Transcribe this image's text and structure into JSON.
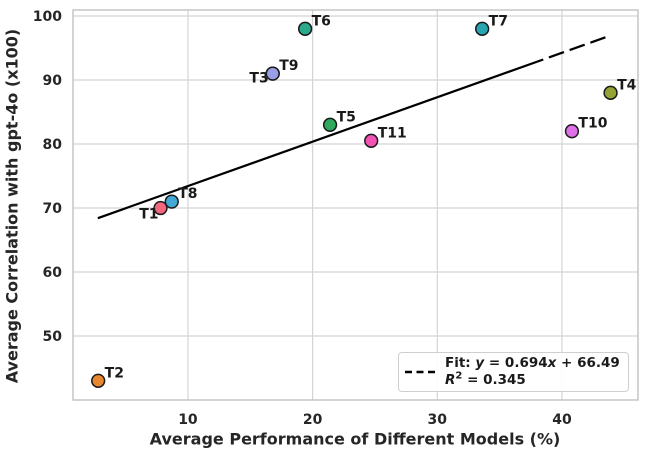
{
  "figure": {
    "background": "#ffffff",
    "text_color": "#262626",
    "grid_color": "#d4d4d4",
    "spine_color": "#bdbdbd",
    "marker_edge_color": "#1a1a1a",
    "fit_line_color": "#000000"
  },
  "chart_data": {
    "type": "scatter",
    "title": "",
    "xlabel": "Average Performance of Different Models (%)",
    "ylabel": "Average Correlation with gpt-4o (x100)",
    "xlim": [
      0.78,
      46.1
    ],
    "ylim": [
      40,
      100.94
    ],
    "xticks": [
      10,
      20,
      30,
      40
    ],
    "yticks": [
      50,
      60,
      70,
      80,
      90,
      100
    ],
    "grid": true,
    "legend_position": "lower right",
    "points": [
      {
        "label": "T1",
        "x": 7.8,
        "y": 70,
        "color": "#f4687f",
        "label_side": "sw"
      },
      {
        "label": "T2",
        "x": 2.8,
        "y": 43,
        "color": "#e8872f",
        "label_side": "ne"
      },
      {
        "label": "T3",
        "x": 16.8,
        "y": 91,
        "color": "#bb9832",
        "label_side": "w"
      },
      {
        "label": "T4",
        "x": 43.9,
        "y": 88,
        "color": "#96a233",
        "label_side": "ne"
      },
      {
        "label": "T5",
        "x": 21.4,
        "y": 83,
        "color": "#2fa95c",
        "label_side": "ne"
      },
      {
        "label": "T6",
        "x": 19.4,
        "y": 98,
        "color": "#2aa98b",
        "label_side": "ne"
      },
      {
        "label": "T7",
        "x": 33.6,
        "y": 98,
        "color": "#27a5b0",
        "label_side": "ne"
      },
      {
        "label": "T8",
        "x": 8.7,
        "y": 71,
        "color": "#41a9d4",
        "label_side": "ne"
      },
      {
        "label": "T9",
        "x": 16.8,
        "y": 91,
        "color": "#9a9ee9",
        "label_side": "ne"
      },
      {
        "label": "T10",
        "x": 40.8,
        "y": 82,
        "color": "#de71e6",
        "label_side": "ne"
      },
      {
        "label": "T11",
        "x": 24.7,
        "y": 80.5,
        "color": "#f254b4",
        "label_side": "ne"
      }
    ],
    "fit": {
      "slope": 0.694,
      "intercept": 66.49,
      "x_start": 2.77,
      "x_end": 43.9,
      "solid_until_x": 38.5
    },
    "legend": {
      "line1_segments": [
        {
          "t": "Fit: ",
          "style": "normal"
        },
        {
          "t": "y",
          "style": "italic"
        },
        {
          "t": " = 0.694",
          "style": "normal"
        },
        {
          "t": "x",
          "style": "italic"
        },
        {
          "t": " + 66.49",
          "style": "normal"
        }
      ],
      "line2_segments": [
        {
          "t": "R",
          "style": "italic"
        },
        {
          "t": "2",
          "style": "sup"
        },
        {
          "t": " = 0.345",
          "style": "normal"
        }
      ]
    }
  }
}
